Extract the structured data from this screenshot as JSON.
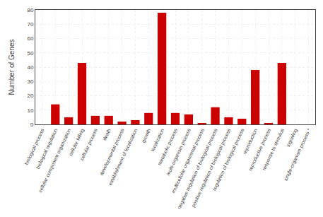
{
  "chart_data": {
    "type": "bar",
    "categories": [
      "biological process",
      "biological regulation",
      "cellular component organization",
      "cellular killing",
      "cellular process",
      "death",
      "developmental process",
      "establishment of localization",
      "growth",
      "localization",
      "metabolic process",
      "multi-organism process",
      "multicellular organismal process",
      "negative regulation of biological process",
      "positive regulation of biological process",
      "regulation of biological process",
      "reproduction",
      "reproductive process",
      "response to stimulus",
      "signaling",
      "single-organism process *"
    ],
    "values": [
      0,
      14,
      5,
      43,
      6,
      6,
      2,
      3,
      8,
      78,
      8,
      7,
      1,
      12,
      5,
      4,
      38,
      1,
      43,
      0,
      0
    ],
    "color": "#cc0000",
    "ylabel": "Number of Genes",
    "ylim": [
      0,
      80
    ],
    "yticks": [
      0,
      10,
      20,
      30,
      40,
      50,
      60,
      70,
      80
    ],
    "grid": true
  }
}
